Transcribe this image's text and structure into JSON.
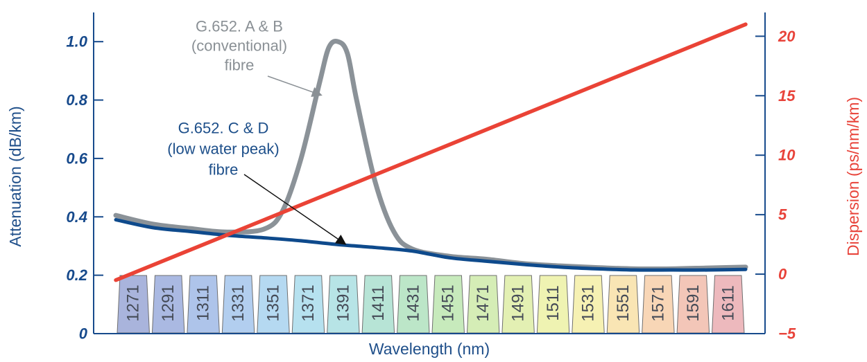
{
  "chart_data": {
    "type": "line",
    "xlabel": "Wavelength (nm)",
    "ylabel_left": "Attenuation (dB/km)",
    "ylabel_right": "Dispersion (ps/nm/km)",
    "y_left_ticks": [
      "0",
      "0.2",
      "0.4",
      "0.6",
      "0.8",
      "1.0"
    ],
    "y_left_range": [
      0,
      1.1
    ],
    "y_right_ticks": [
      "−5",
      "0",
      "5",
      "10",
      "15",
      "20"
    ],
    "y_right_range": [
      -5,
      22
    ],
    "x_range": [
      1271,
      1611
    ],
    "grid": false,
    "cwdm_channels": [
      "1271",
      "1291",
      "1311",
      "1331",
      "1351",
      "1371",
      "1391",
      "1411",
      "1431",
      "1451",
      "1471",
      "1491",
      "1511",
      "1531",
      "1551",
      "1571",
      "1591",
      "1611"
    ],
    "cwdm_colors": [
      "#a9b4dc",
      "#aab9e2",
      "#aec4ea",
      "#b2ceef",
      "#b5d9f1",
      "#b6e1ef",
      "#b7e4e6",
      "#b7e4d6",
      "#bce6c8",
      "#c7eabc",
      "#d5edb6",
      "#e3f0b3",
      "#eff3b2",
      "#f6f1b3",
      "#f9e5b4",
      "#f8d6b6",
      "#f3c6b8",
      "#edb9bd"
    ],
    "series": [
      {
        "name": "G.652. A & B (conventional) fibre",
        "axis": "left",
        "color": "#8b9298",
        "points": [
          [
            1271,
            0.405
          ],
          [
            1291,
            0.375
          ],
          [
            1311,
            0.36
          ],
          [
            1331,
            0.348
          ],
          [
            1351,
            0.358
          ],
          [
            1361,
            0.42
          ],
          [
            1371,
            0.6
          ],
          [
            1381,
            0.86
          ],
          [
            1386,
            0.98
          ],
          [
            1391,
            1.0
          ],
          [
            1396,
            0.96
          ],
          [
            1401,
            0.8
          ],
          [
            1411,
            0.52
          ],
          [
            1421,
            0.35
          ],
          [
            1431,
            0.29
          ],
          [
            1451,
            0.265
          ],
          [
            1471,
            0.255
          ],
          [
            1491,
            0.24
          ],
          [
            1511,
            0.232
          ],
          [
            1531,
            0.226
          ],
          [
            1551,
            0.222
          ],
          [
            1571,
            0.222
          ],
          [
            1591,
            0.225
          ],
          [
            1611,
            0.228
          ]
        ]
      },
      {
        "name": "G.652. C & D (low water peak) fibre",
        "axis": "left",
        "color": "#0e4a8c",
        "points": [
          [
            1271,
            0.39
          ],
          [
            1291,
            0.363
          ],
          [
            1311,
            0.35
          ],
          [
            1331,
            0.337
          ],
          [
            1351,
            0.328
          ],
          [
            1371,
            0.318
          ],
          [
            1391,
            0.305
          ],
          [
            1411,
            0.295
          ],
          [
            1431,
            0.283
          ],
          [
            1451,
            0.26
          ],
          [
            1471,
            0.248
          ],
          [
            1491,
            0.237
          ],
          [
            1511,
            0.228
          ],
          [
            1531,
            0.222
          ],
          [
            1551,
            0.218
          ],
          [
            1571,
            0.218
          ],
          [
            1591,
            0.218
          ],
          [
            1611,
            0.22
          ]
        ]
      },
      {
        "name": "Dispersion",
        "axis": "right",
        "color": "#ea4336",
        "points": [
          [
            1271,
            -0.5
          ],
          [
            1611,
            21
          ]
        ]
      }
    ],
    "annotations": {
      "ab": [
        "G.652. A & B",
        "(conventional)",
        "fibre"
      ],
      "cd": [
        "G.652. C & D",
        "(low water peak)",
        "fibre"
      ]
    },
    "colors": {
      "left_axis": "#174a8c",
      "right_axis": "#e8433a"
    }
  }
}
